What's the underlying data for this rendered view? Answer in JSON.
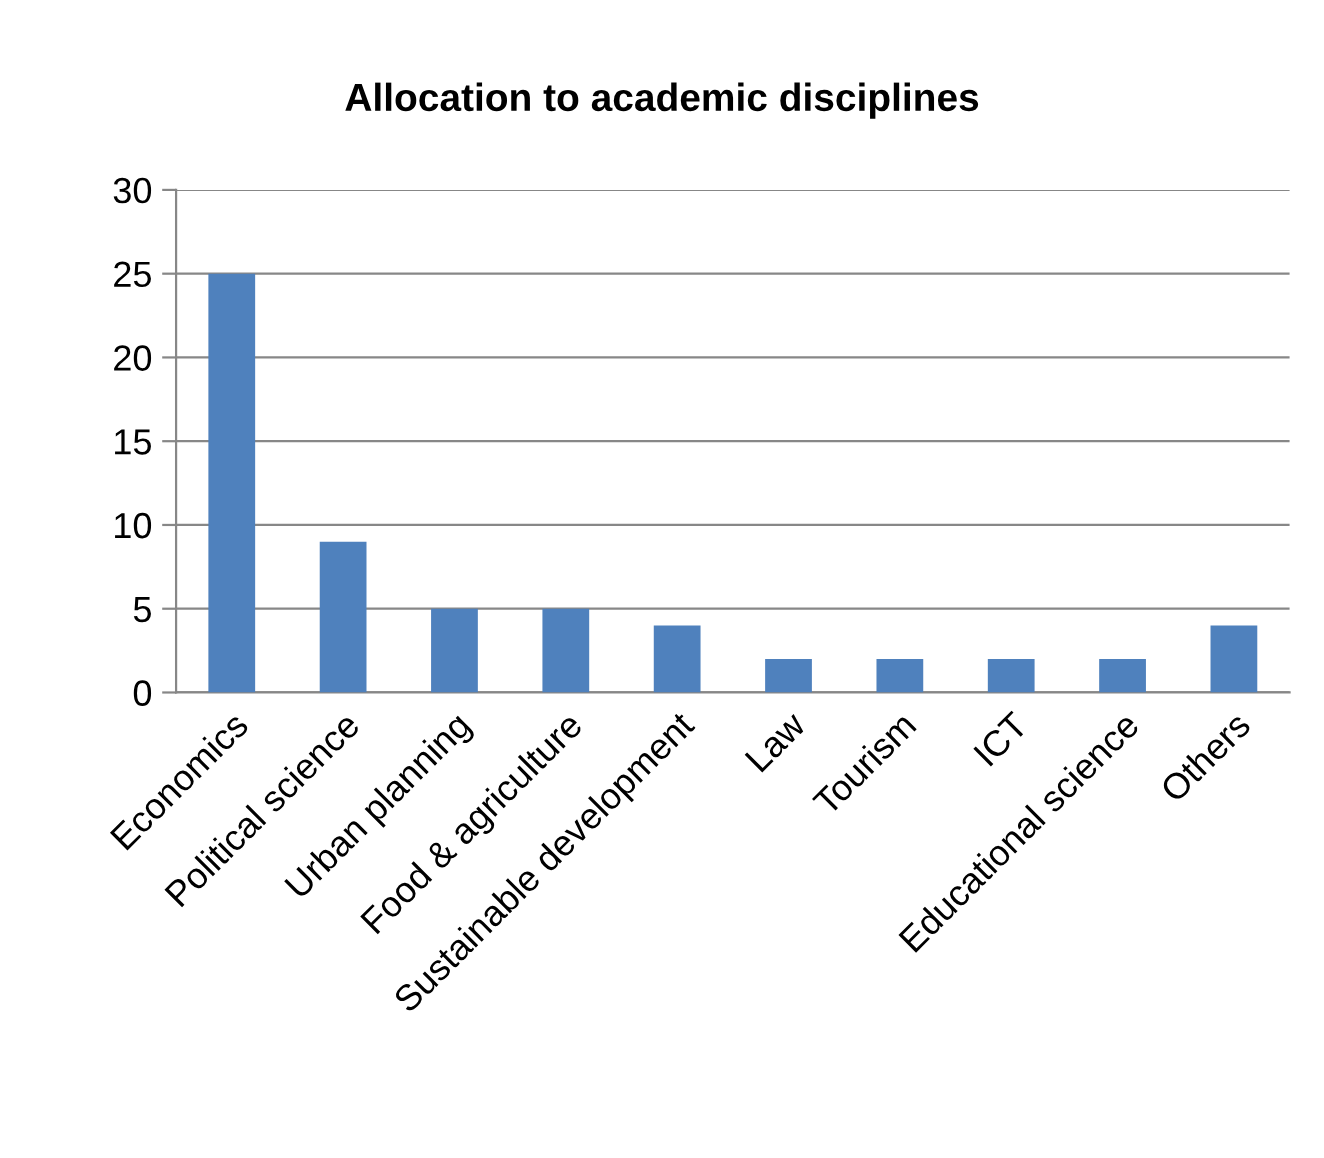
{
  "chart_data": {
    "type": "bar",
    "title": "Allocation to academic disciplines",
    "categories": [
      "Economics",
      "Political science",
      "Urban planning",
      "Food & agriculture",
      "Sustainable development",
      "Law",
      "Tourism",
      "ICT",
      "Educational science",
      "Others"
    ],
    "values": [
      25,
      9,
      5,
      5,
      4,
      2,
      2,
      2,
      2,
      4
    ],
    "color": "#4f81bd",
    "ylim": [
      0,
      30
    ],
    "yticks": [
      0,
      5,
      10,
      15,
      20,
      25,
      30
    ],
    "grid": "y",
    "legend": false
  }
}
